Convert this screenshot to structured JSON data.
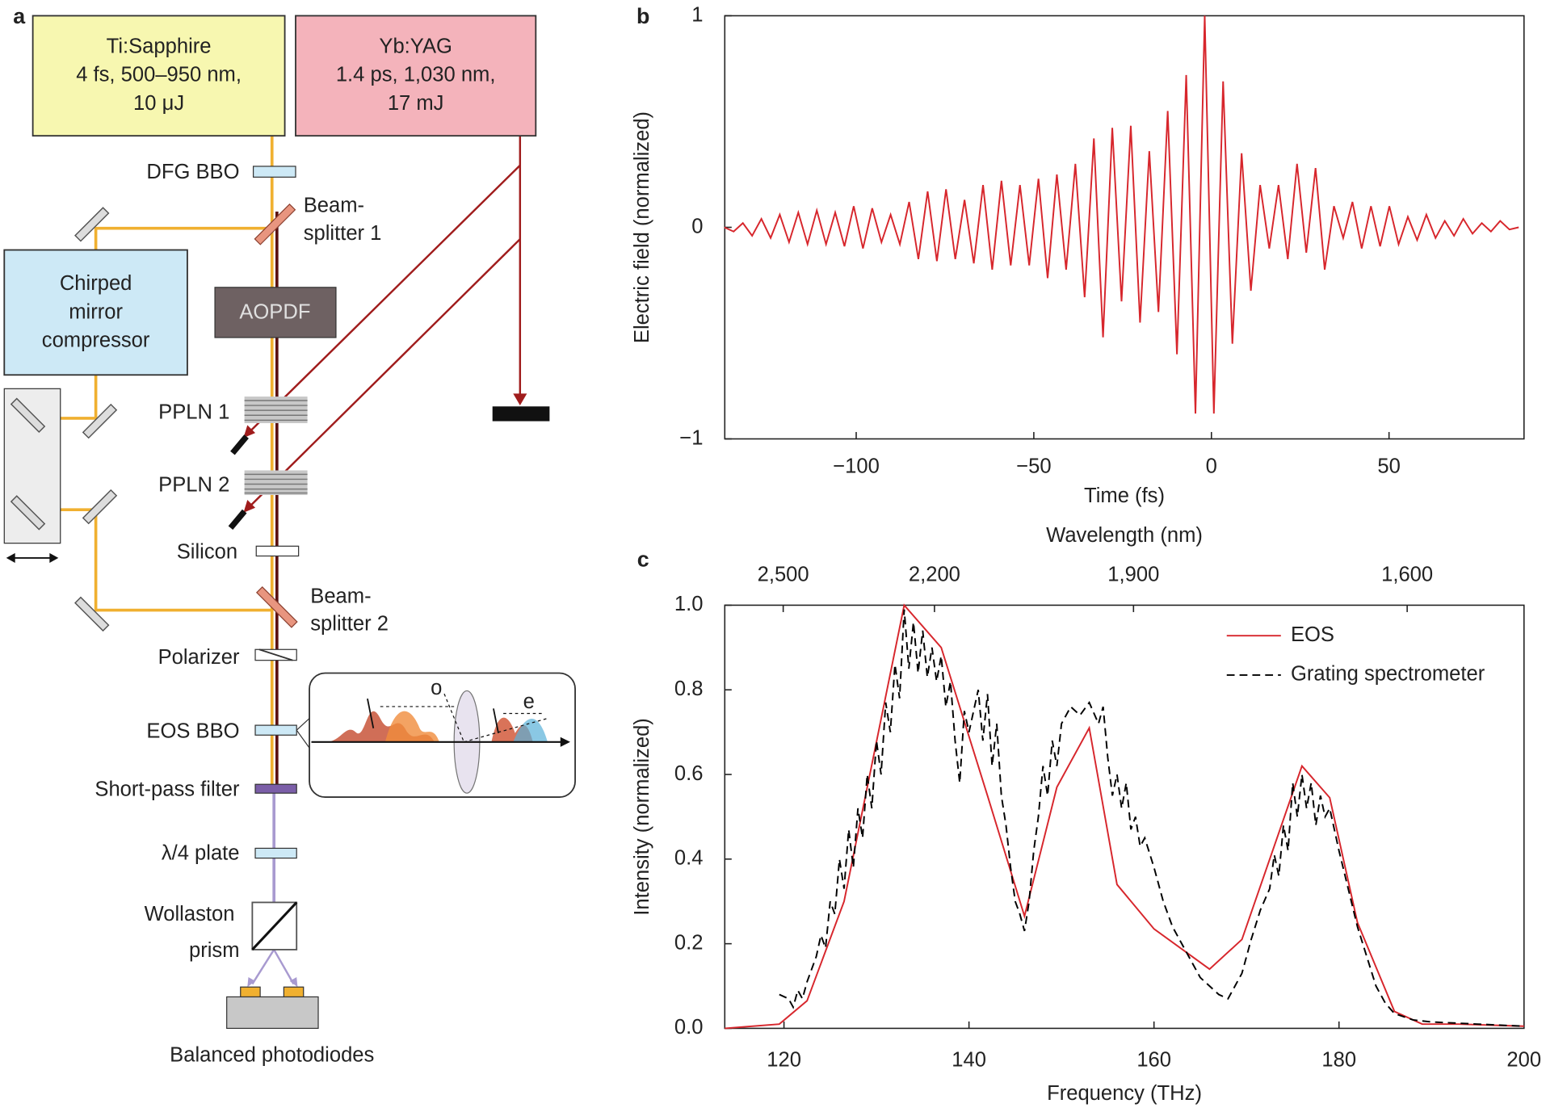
{
  "diagram": {
    "panel_label": "a",
    "ti_sapphire": [
      "Ti:Sapphire",
      "4 fs, 500–950 nm,",
      "10 μJ"
    ],
    "yb_yag": [
      "Yb:YAG",
      "1.4 ps, 1,030 nm,",
      "17 mJ"
    ],
    "compressor": [
      "Chirped",
      "mirror",
      "compressor"
    ],
    "aopdf": "AOPDF",
    "dfg_bbo": "DFG BBO",
    "beamsplitter1": [
      "Beam-",
      "splitter 1"
    ],
    "ppln1": "PPLN 1",
    "ppln2": "PPLN 2",
    "silicon": "Silicon",
    "beamsplitter2": [
      "Beam-",
      "splitter 2"
    ],
    "polarizer": "Polarizer",
    "eos_bbo": "EOS BBO",
    "short_pass": "Short-pass filter",
    "waveplate": "λ/4 plate",
    "wollaston": [
      "Wollaston",
      "prism"
    ],
    "photodiodes": "Balanced photodiodes",
    "inset": {
      "o": "o",
      "e": "e"
    }
  },
  "chart_data": [
    {
      "type": "line",
      "panel_label": "b",
      "ylabel": "Electric field (normalized)",
      "xlabel": "Time (fs)",
      "xlim": [
        -137,
        88
      ],
      "ylim": [
        -1,
        1
      ],
      "xticks": [
        {
          "value": -100,
          "label": "−100"
        },
        {
          "value": -50,
          "label": "−50"
        },
        0,
        50
      ],
      "yticks": [
        {
          "value": -1,
          "label": "−1"
        },
        0,
        1
      ],
      "series": [
        {
          "name": null,
          "color": "#d7262c",
          "style": "solid",
          "x": [
            -137.1,
            -134.5,
            -131.9,
            -129.3,
            -126.7,
            -124.1,
            -121.5,
            -118.9,
            -116.3,
            -113.7,
            -111.1,
            -108.5,
            -105.9,
            -103.3,
            -100.7,
            -98.1,
            -95.5,
            -92.9,
            -90.3,
            -87.7,
            -85.1,
            -82.5,
            -79.9,
            -77.3,
            -74.7,
            -72.1,
            -69.5,
            -66.9,
            -64.3,
            -61.7,
            -59.1,
            -56.5,
            -53.9,
            -51.3,
            -48.7,
            -46.1,
            -43.5,
            -40.9,
            -38.3,
            -35.7,
            -33.1,
            -30.5,
            -27.9,
            -25.3,
            -22.7,
            -20.1,
            -17.5,
            -14.9,
            -12.3,
            -9.7,
            -7.1,
            -4.5,
            -1.9,
            0.7,
            3.3,
            5.9,
            8.5,
            11.1,
            13.7,
            16.3,
            18.9,
            21.5,
            24.1,
            26.7,
            29.3,
            31.9,
            34.5,
            37.1,
            39.7,
            42.3,
            44.9,
            47.5,
            50.1,
            52.7,
            55.3,
            57.9,
            60.5,
            63.1,
            65.7,
            68.3,
            70.9,
            73.5,
            76.1,
            78.7,
            81.3,
            83.9,
            86.5
          ],
          "values": [
            0,
            -0.02,
            0.02,
            -0.04,
            0.04,
            -0.05,
            0.06,
            -0.07,
            0.07,
            -0.08,
            0.08,
            -0.08,
            0.07,
            -0.09,
            0.1,
            -0.1,
            0.09,
            -0.07,
            0.06,
            -0.08,
            0.12,
            -0.15,
            0.17,
            -0.16,
            0.18,
            -0.15,
            0.13,
            -0.17,
            0.2,
            -0.2,
            0.22,
            -0.18,
            0.2,
            -0.18,
            0.23,
            -0.24,
            0.25,
            -0.2,
            0.3,
            -0.33,
            0.42,
            -0.52,
            0.47,
            -0.35,
            0.48,
            -0.45,
            0.36,
            -0.4,
            0.55,
            -0.6,
            0.72,
            -0.88,
            1.0,
            -0.88,
            0.69,
            -0.55,
            0.35,
            -0.3,
            0.2,
            -0.1,
            0.2,
            -0.15,
            0.3,
            -0.12,
            0.28,
            -0.2,
            0.1,
            -0.05,
            0.12,
            -0.1,
            0.1,
            -0.09,
            0.1,
            -0.08,
            0.05,
            -0.06,
            0.06,
            -0.05,
            0.03,
            -0.04,
            0.04,
            -0.03,
            0.02,
            -0.02,
            0.03,
            -0.01,
            0
          ]
        }
      ]
    },
    {
      "type": "line",
      "panel_label": "c",
      "ylabel": "Intensity (normalized)",
      "xlabel": "Frequency (THz)",
      "x2label": "Wavelength (nm)",
      "legend": "upper right",
      "xlim": [
        113.6,
        200
      ],
      "ylim": [
        0,
        1
      ],
      "xticks": [
        120,
        140,
        160,
        180,
        200
      ],
      "x2ticks": [
        {
          "value": 2500,
          "label": "2,500"
        },
        {
          "value": 2200,
          "label": "2,200"
        },
        {
          "value": 1900,
          "label": "1,900"
        },
        {
          "value": 1600,
          "label": "1,600"
        }
      ],
      "yticks": [
        {
          "value": 0,
          "label": "0.0"
        },
        {
          "value": 0.2,
          "label": "0.2"
        },
        {
          "value": 0.4,
          "label": "0.4"
        },
        {
          "value": 0.6,
          "label": "0.6"
        },
        {
          "value": 0.8,
          "label": "0.8"
        },
        {
          "value": 1,
          "label": "1.0"
        }
      ],
      "series": [
        {
          "name": "EOS",
          "color": "#d7262c",
          "style": "solid",
          "x": [
            113.6,
            119.5,
            122.5,
            126.5,
            133,
            137,
            142,
            146,
            149.5,
            153,
            156,
            160,
            166,
            169.5,
            176,
            179,
            182,
            186,
            189,
            193,
            200
          ],
          "values": [
            0,
            0.01,
            0.065,
            0.3,
            1.0,
            0.9,
            0.55,
            0.265,
            0.57,
            0.71,
            0.34,
            0.235,
            0.14,
            0.21,
            0.62,
            0.545,
            0.25,
            0.04,
            0.01,
            0.01,
            0.005
          ]
        },
        {
          "name": "Grating spectrometer",
          "color": "#000000",
          "style": "dashed",
          "x": [
            119.5,
            120.5,
            121,
            121.5,
            122,
            122.5,
            123.5,
            124,
            124.5,
            125,
            125.5,
            126,
            126.5,
            127,
            127.5,
            128,
            128.5,
            129,
            129.5,
            130,
            130.5,
            131,
            131.5,
            132,
            132.5,
            133,
            133.5,
            134,
            134.5,
            135,
            135.5,
            136,
            136.5,
            137,
            137.5,
            138,
            138.5,
            139,
            139.5,
            140,
            141,
            141.5,
            142,
            142.5,
            143,
            143.5,
            144,
            144.5,
            145,
            145.5,
            146,
            146.5,
            147,
            147.5,
            148,
            148.5,
            149,
            149.5,
            150,
            151,
            152,
            153,
            154,
            154.5,
            155,
            155.5,
            156,
            156.5,
            157,
            157.5,
            158,
            158.5,
            159,
            160,
            161,
            162,
            163,
            164,
            165,
            166,
            167,
            168,
            168.5,
            169.5,
            170.5,
            171.5,
            172.5,
            173,
            173.5,
            174,
            174.5,
            175,
            175.5,
            176,
            176.5,
            177,
            177.5,
            178,
            178.5,
            179,
            180,
            181,
            182,
            183,
            184,
            185,
            186,
            188,
            190,
            195,
            200
          ],
          "values": [
            0.08,
            0.07,
            0.05,
            0.09,
            0.07,
            0.11,
            0.17,
            0.22,
            0.19,
            0.3,
            0.27,
            0.4,
            0.33,
            0.47,
            0.38,
            0.52,
            0.45,
            0.6,
            0.52,
            0.68,
            0.6,
            0.77,
            0.7,
            0.86,
            0.78,
            0.99,
            0.85,
            0.96,
            0.84,
            0.94,
            0.83,
            0.9,
            0.82,
            0.88,
            0.76,
            0.82,
            0.68,
            0.58,
            0.75,
            0.7,
            0.8,
            0.68,
            0.79,
            0.62,
            0.72,
            0.55,
            0.48,
            0.38,
            0.3,
            0.27,
            0.23,
            0.3,
            0.42,
            0.5,
            0.62,
            0.55,
            0.68,
            0.62,
            0.72,
            0.76,
            0.74,
            0.77,
            0.72,
            0.76,
            0.64,
            0.55,
            0.6,
            0.52,
            0.58,
            0.47,
            0.5,
            0.43,
            0.45,
            0.38,
            0.3,
            0.24,
            0.2,
            0.16,
            0.12,
            0.1,
            0.08,
            0.07,
            0.09,
            0.13,
            0.21,
            0.28,
            0.33,
            0.41,
            0.36,
            0.48,
            0.42,
            0.58,
            0.5,
            0.6,
            0.52,
            0.58,
            0.48,
            0.55,
            0.5,
            0.52,
            0.42,
            0.33,
            0.24,
            0.17,
            0.1,
            0.06,
            0.035,
            0.02,
            0.015,
            0.01,
            0.005
          ]
        }
      ]
    }
  ]
}
